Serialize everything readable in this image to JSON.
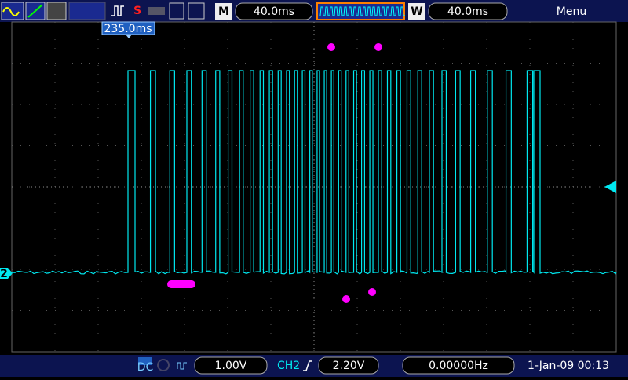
{
  "top_bar": {
    "run_state": "S",
    "mode_label": "M",
    "timebase": "40.0ms",
    "window_label": "W",
    "window_timebase": "40.0ms",
    "menu": "Menu"
  },
  "screen": {
    "trigger_position": "235.0ms",
    "channel_marker": "2"
  },
  "bottom_bar": {
    "coupling": "DC",
    "ch_scale": "1.00V",
    "trigger_channel": "CH2",
    "trigger_level": "2.20V",
    "frequency": "0.00000Hz",
    "datetime": "1-Jan-09 00:13"
  }
}
